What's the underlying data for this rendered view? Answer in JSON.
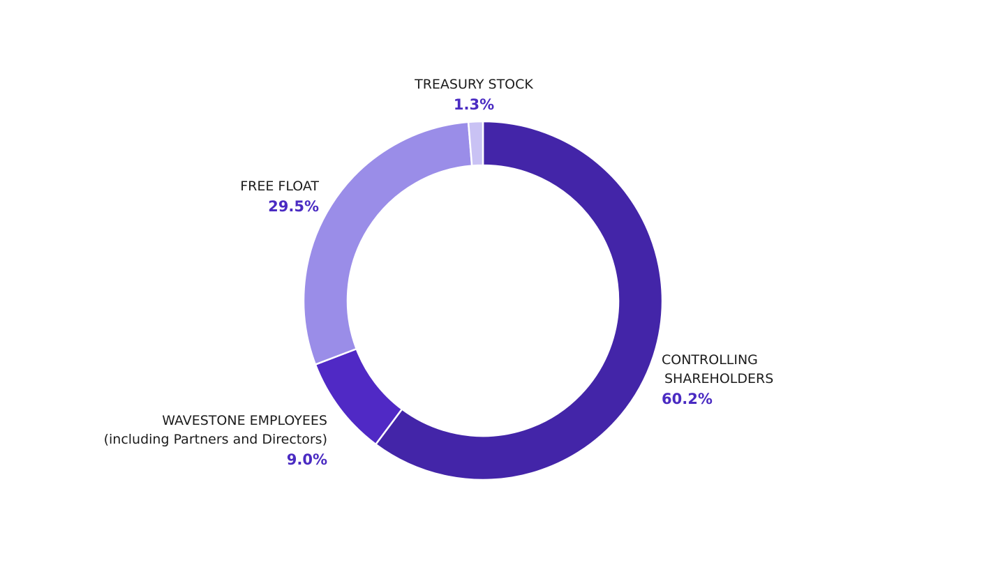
{
  "chart_data": {
    "type": "pie",
    "style": "donut",
    "title": "",
    "start": "top, clockwise",
    "slices": [
      {
        "label": [
          "CONTROLLING",
          "SHAREHOLDERS"
        ],
        "value": 60.2,
        "value_label": "60.2%",
        "color": "#4325a8"
      },
      {
        "label": [
          "WAVESTONE EMPLOYEES",
          "(including Partners and Directors)"
        ],
        "value": 9.0,
        "value_label": "9.0%",
        "color": "#5029c5"
      },
      {
        "label": [
          "FREE FLOAT"
        ],
        "value": 29.5,
        "value_label": "29.5%",
        "color": "#9a8de8"
      },
      {
        "label": [
          "TREASURY STOCK"
        ],
        "value": 1.3,
        "value_label": "1.3%",
        "color": "#c9c2f4"
      }
    ],
    "value_label_color": "#4a2bc2"
  }
}
